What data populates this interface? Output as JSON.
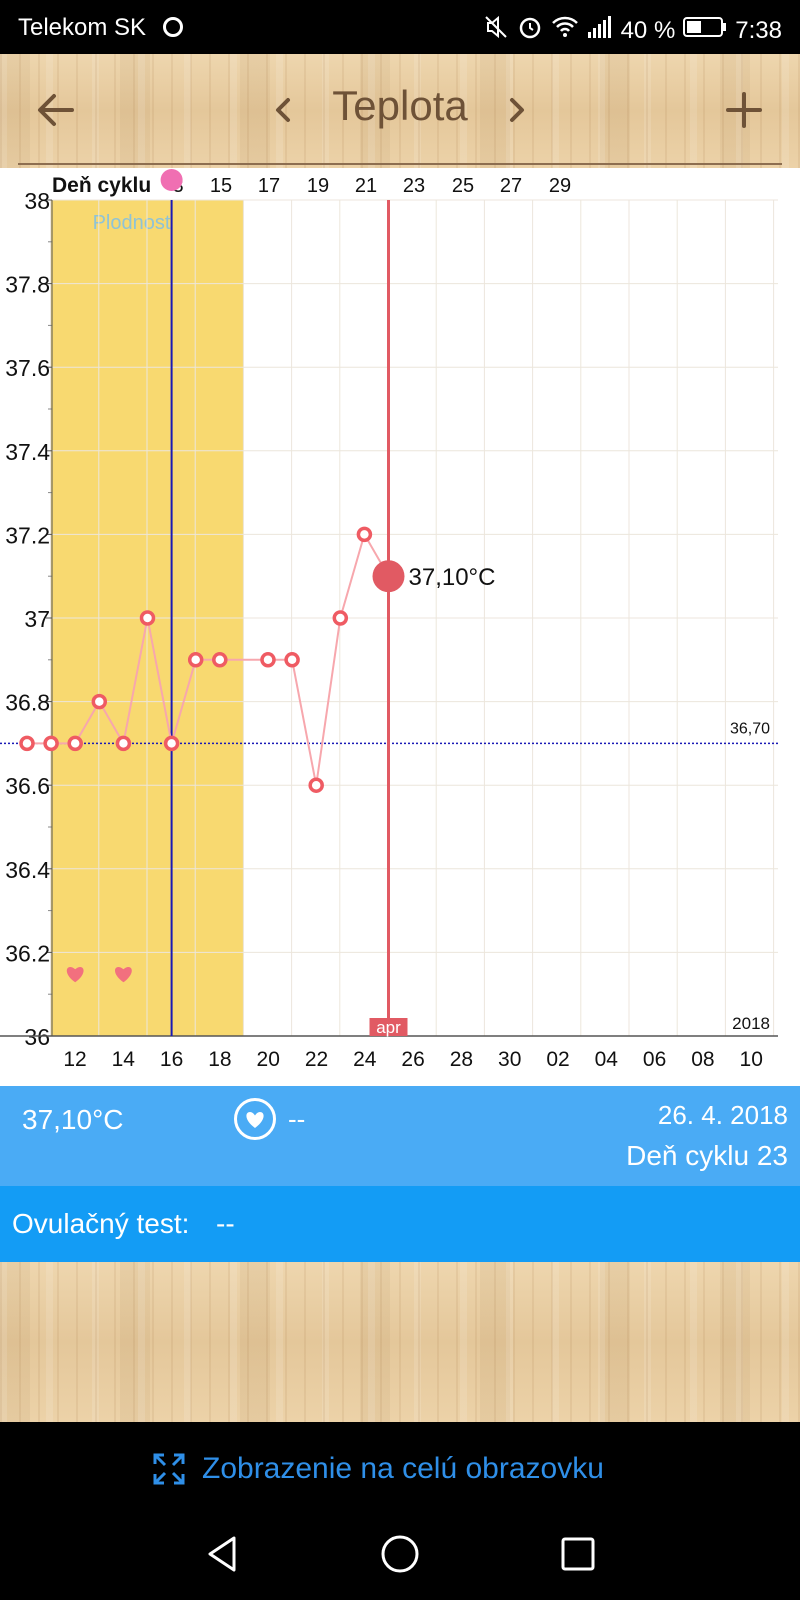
{
  "status_bar": {
    "carrier": "Telekom SK",
    "battery": "40 %",
    "time": "7:38"
  },
  "header": {
    "title": "Teplota",
    "back_icon": "arrow-left-icon",
    "prev_icon": "chevron-left-icon",
    "next_icon": "chevron-right-icon",
    "add_icon": "plus-icon"
  },
  "chart_data": {
    "type": "line",
    "cycle_day_label": "Deň cyklu",
    "cycle_ticks": [
      "3",
      "15",
      "17",
      "19",
      "21",
      "23",
      "25",
      "27",
      "29"
    ],
    "date_ticks": [
      "12",
      "14",
      "16",
      "18",
      "20",
      "22",
      "24",
      "26",
      "28",
      "30",
      "02",
      "04",
      "06",
      "08",
      "10"
    ],
    "y_ticks": [
      "38",
      "37.8",
      "37.6",
      "37.4",
      "37.2",
      "37",
      "36.8",
      "36.6",
      "36.4",
      "36.2",
      "36"
    ],
    "ylim": [
      36,
      38
    ],
    "fertility_label": "Plodnosť",
    "fertile_window": [
      "12",
      "19"
    ],
    "ovulation_day": "17",
    "coverline": {
      "value": 36.7,
      "label": "36,70"
    },
    "selected": {
      "day": "26",
      "value": 37.1,
      "label": "37,10°C",
      "month_label": "apr"
    },
    "year_label": "2018",
    "heart_days": [
      "13",
      "15"
    ],
    "points": [
      {
        "day": "11",
        "value": 36.7
      },
      {
        "day": "12",
        "value": 36.7
      },
      {
        "day": "13",
        "value": 36.7
      },
      {
        "day": "14",
        "value": 36.8
      },
      {
        "day": "15",
        "value": 36.7
      },
      {
        "day": "16",
        "value": 37.0
      },
      {
        "day": "17",
        "value": 36.7
      },
      {
        "day": "18",
        "value": 36.9
      },
      {
        "day": "19",
        "value": 36.9
      },
      {
        "day": "21",
        "value": 36.9
      },
      {
        "day": "22",
        "value": 36.9
      },
      {
        "day": "23",
        "value": 36.6
      },
      {
        "day": "24",
        "value": 37.0
      },
      {
        "day": "25",
        "value": 37.2
      },
      {
        "day": "26",
        "value": 37.1
      }
    ],
    "colors": {
      "line": "#f7a7ad",
      "marker": "#ef5b63",
      "selected": "#e15a63",
      "fertile": "#f8d970",
      "ovulation": "#1a1ab5",
      "coverline": "#1a1ab5",
      "fertility_text": "#8fc3d6"
    }
  },
  "info": {
    "temperature": "37,10°C",
    "sex": "--",
    "date": "26. 4. 2018",
    "cycle_day": "Deň cyklu 23"
  },
  "ovulation_test": {
    "label": "Ovulačný test:",
    "value": "--"
  },
  "fullscreen": {
    "label": "Zobrazenie na celú obrazovku",
    "color": "#2f8fe8"
  },
  "nav": {
    "back_icon": "triangle-back-icon",
    "home_icon": "circle-home-icon",
    "recent_icon": "square-recent-icon"
  }
}
